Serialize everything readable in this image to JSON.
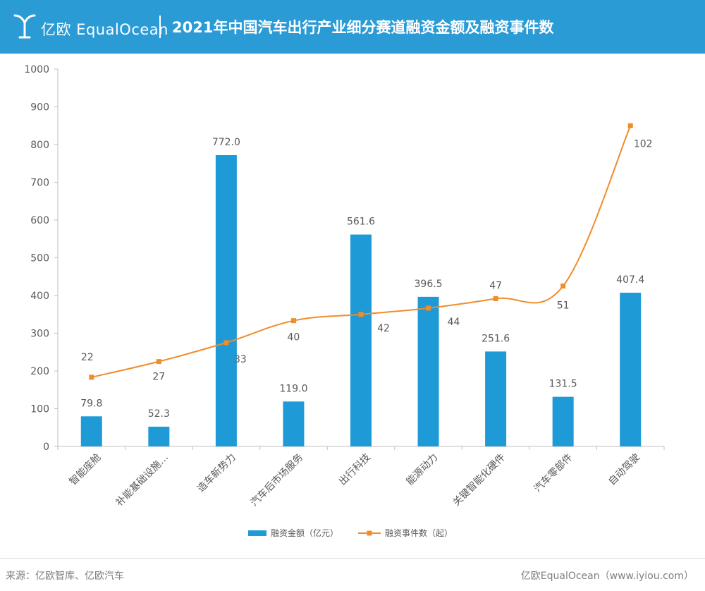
{
  "header": {
    "logo_text": "亿欧 EqualOcean",
    "title": "2021年中国汽车出行产业细分赛道融资金额及融资事件数"
  },
  "footer": {
    "source": "来源：亿欧智库、亿欧汽车",
    "brand": "亿欧EqualOcean（www.iyiou.com）"
  },
  "colors": {
    "header_bg": "#2b9bd6",
    "bar": "#1e9bd7",
    "line": "#f08c2a"
  },
  "chart_data": {
    "type": "bar",
    "categories": [
      "智能座舱",
      "补能基础设施…",
      "造车新势力",
      "汽车后市场服务",
      "出行科技",
      "能源动力",
      "关键智能化硬件",
      "汽车零部件",
      "自动驾驶"
    ],
    "ylim": [
      0,
      1000
    ],
    "yticks": [
      0,
      100,
      200,
      300,
      400,
      500,
      600,
      700,
      800,
      900,
      1000
    ],
    "grid": false,
    "legend_position": "bottom",
    "series": [
      {
        "name": "融资金额（亿元）",
        "type": "bar",
        "values": [
          79.8,
          52.3,
          772.0,
          119.0,
          561.6,
          396.5,
          251.6,
          131.5,
          407.4
        ],
        "labels": [
          "79.8",
          "52.3",
          "772.0",
          "119.0",
          "561.6",
          "396.5",
          "251.6",
          "131.5",
          "407.4"
        ]
      },
      {
        "name": "融资事件数（起）",
        "type": "line",
        "values": [
          22,
          27,
          33,
          40,
          42,
          44,
          47,
          51,
          102
        ],
        "labels": [
          "22",
          "27",
          "33",
          "40",
          "42",
          "44",
          "47",
          "51",
          "102"
        ]
      }
    ]
  }
}
